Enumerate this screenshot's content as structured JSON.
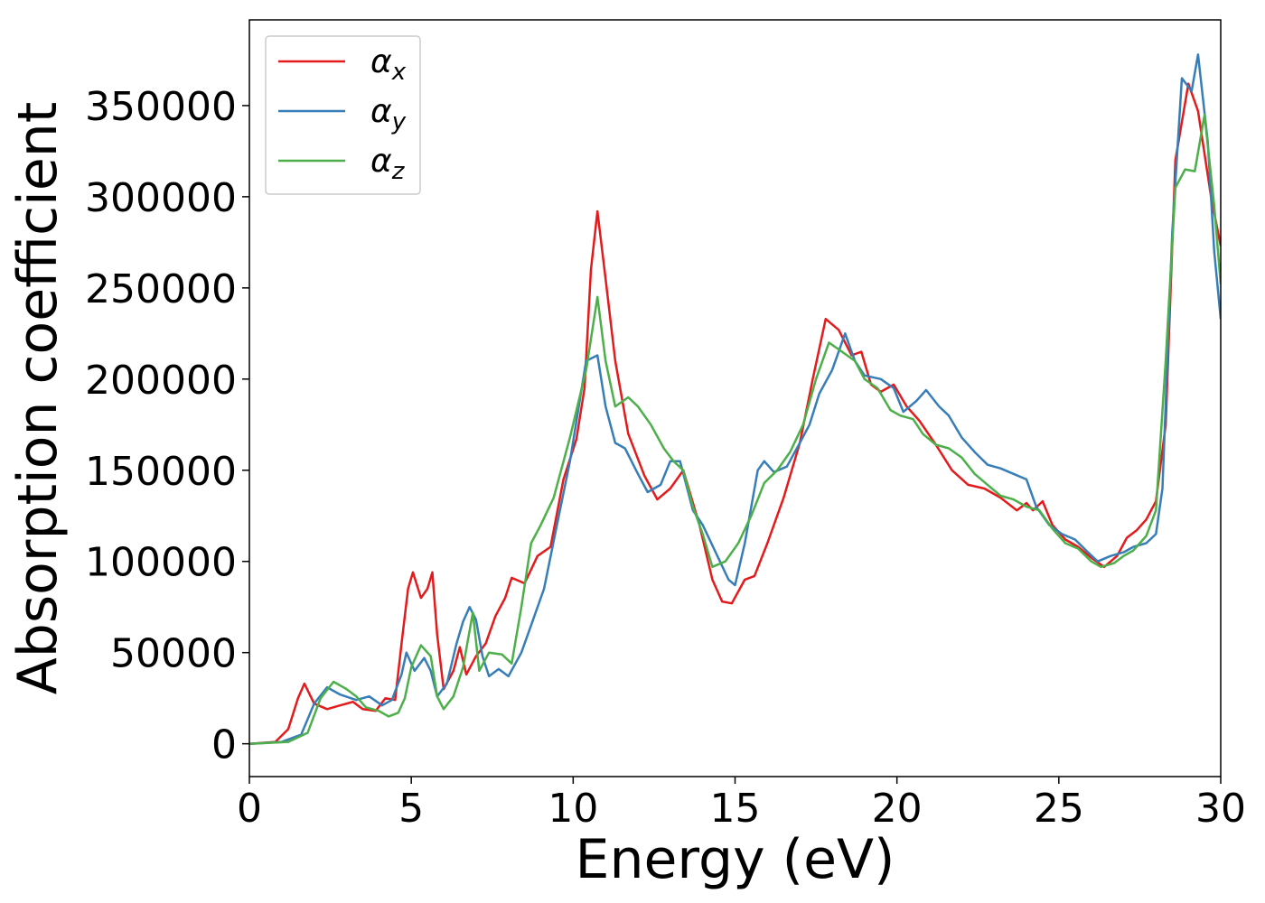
{
  "chart_data": {
    "type": "line",
    "xlabel": "Energy (eV)",
    "ylabel": "Absorption coefficient",
    "xlim": [
      0,
      30
    ],
    "ylim": [
      -18000,
      397000
    ],
    "xticks": [
      "0",
      "5",
      "10",
      "15",
      "20",
      "25",
      "30"
    ],
    "yticks": [
      "0",
      "50000",
      "100000",
      "150000",
      "200000",
      "250000",
      "300000",
      "350000"
    ],
    "grid": false,
    "legend_position": "top-left",
    "series": [
      {
        "name": "α_x",
        "legend_base": "α",
        "legend_sub": "x",
        "color": "#e41a1c",
        "points": [
          [
            0,
            0
          ],
          [
            0.8,
            1000
          ],
          [
            1.2,
            8000
          ],
          [
            1.5,
            25000
          ],
          [
            1.7,
            33000
          ],
          [
            2.0,
            22000
          ],
          [
            2.4,
            19000
          ],
          [
            2.8,
            21000
          ],
          [
            3.2,
            23000
          ],
          [
            3.5,
            19000
          ],
          [
            3.9,
            18000
          ],
          [
            4.2,
            25000
          ],
          [
            4.5,
            24000
          ],
          [
            4.7,
            55000
          ],
          [
            4.9,
            85000
          ],
          [
            5.05,
            94000
          ],
          [
            5.3,
            80000
          ],
          [
            5.5,
            85000
          ],
          [
            5.65,
            94000
          ],
          [
            5.8,
            60000
          ],
          [
            6.0,
            30000
          ],
          [
            6.3,
            40000
          ],
          [
            6.5,
            53000
          ],
          [
            6.7,
            38000
          ],
          [
            7.0,
            48000
          ],
          [
            7.3,
            55000
          ],
          [
            7.6,
            70000
          ],
          [
            7.9,
            80000
          ],
          [
            8.1,
            91000
          ],
          [
            8.5,
            88000
          ],
          [
            8.9,
            103000
          ],
          [
            9.3,
            108000
          ],
          [
            9.7,
            145000
          ],
          [
            10.1,
            167000
          ],
          [
            10.35,
            195000
          ],
          [
            10.55,
            260000
          ],
          [
            10.75,
            292000
          ],
          [
            11.0,
            255000
          ],
          [
            11.3,
            210000
          ],
          [
            11.7,
            170000
          ],
          [
            12.2,
            147000
          ],
          [
            12.6,
            134000
          ],
          [
            13.0,
            140000
          ],
          [
            13.4,
            150000
          ],
          [
            13.9,
            120000
          ],
          [
            14.3,
            90000
          ],
          [
            14.6,
            78000
          ],
          [
            14.9,
            77000
          ],
          [
            15.3,
            90000
          ],
          [
            15.6,
            92000
          ],
          [
            16.0,
            110000
          ],
          [
            16.5,
            135000
          ],
          [
            17.0,
            165000
          ],
          [
            17.4,
            200000
          ],
          [
            17.8,
            233000
          ],
          [
            18.2,
            227000
          ],
          [
            18.6,
            213000
          ],
          [
            18.9,
            215000
          ],
          [
            19.2,
            197000
          ],
          [
            19.5,
            193000
          ],
          [
            19.9,
            197000
          ],
          [
            20.3,
            185000
          ],
          [
            20.7,
            177000
          ],
          [
            21.2,
            164000
          ],
          [
            21.7,
            150000
          ],
          [
            22.2,
            142000
          ],
          [
            22.7,
            140000
          ],
          [
            23.2,
            135000
          ],
          [
            23.7,
            128000
          ],
          [
            24.0,
            132000
          ],
          [
            24.2,
            128000
          ],
          [
            24.5,
            133000
          ],
          [
            24.8,
            120000
          ],
          [
            25.2,
            112000
          ],
          [
            25.6,
            108000
          ],
          [
            26.0,
            102000
          ],
          [
            26.4,
            97000
          ],
          [
            26.8,
            103000
          ],
          [
            27.1,
            113000
          ],
          [
            27.4,
            117000
          ],
          [
            27.7,
            123000
          ],
          [
            28.0,
            133000
          ],
          [
            28.3,
            175000
          ],
          [
            28.6,
            320000
          ],
          [
            29.0,
            362000
          ],
          [
            29.3,
            347000
          ],
          [
            29.7,
            300000
          ],
          [
            30.0,
            273000
          ]
        ]
      },
      {
        "name": "α_y",
        "legend_base": "α",
        "legend_sub": "y",
        "color": "#377eb8",
        "points": [
          [
            0,
            0
          ],
          [
            1.0,
            1000
          ],
          [
            1.6,
            5000
          ],
          [
            2.0,
            22000
          ],
          [
            2.4,
            31000
          ],
          [
            2.8,
            27000
          ],
          [
            3.3,
            24000
          ],
          [
            3.7,
            26000
          ],
          [
            4.1,
            21000
          ],
          [
            4.4,
            24000
          ],
          [
            4.7,
            38000
          ],
          [
            4.85,
            50000
          ],
          [
            5.1,
            40000
          ],
          [
            5.4,
            47000
          ],
          [
            5.6,
            40000
          ],
          [
            5.8,
            26000
          ],
          [
            6.1,
            33000
          ],
          [
            6.4,
            55000
          ],
          [
            6.6,
            67000
          ],
          [
            6.8,
            75000
          ],
          [
            7.0,
            68000
          ],
          [
            7.2,
            48000
          ],
          [
            7.4,
            37000
          ],
          [
            7.7,
            41000
          ],
          [
            8.0,
            37000
          ],
          [
            8.4,
            50000
          ],
          [
            8.7,
            65000
          ],
          [
            9.1,
            85000
          ],
          [
            9.5,
            120000
          ],
          [
            9.9,
            155000
          ],
          [
            10.4,
            210000
          ],
          [
            10.75,
            213000
          ],
          [
            11.0,
            185000
          ],
          [
            11.3,
            165000
          ],
          [
            11.6,
            162000
          ],
          [
            12.0,
            148000
          ],
          [
            12.3,
            138000
          ],
          [
            12.7,
            142000
          ],
          [
            13.0,
            155000
          ],
          [
            13.3,
            155000
          ],
          [
            13.7,
            128000
          ],
          [
            14.0,
            120000
          ],
          [
            14.4,
            105000
          ],
          [
            14.8,
            90000
          ],
          [
            15.0,
            87000
          ],
          [
            15.3,
            110000
          ],
          [
            15.7,
            150000
          ],
          [
            15.9,
            155000
          ],
          [
            16.2,
            149000
          ],
          [
            16.6,
            152000
          ],
          [
            17.0,
            165000
          ],
          [
            17.3,
            175000
          ],
          [
            17.6,
            192000
          ],
          [
            18.0,
            205000
          ],
          [
            18.4,
            225000
          ],
          [
            18.7,
            210000
          ],
          [
            19.0,
            202000
          ],
          [
            19.5,
            200000
          ],
          [
            19.9,
            195000
          ],
          [
            20.2,
            182000
          ],
          [
            20.6,
            188000
          ],
          [
            20.9,
            194000
          ],
          [
            21.3,
            185000
          ],
          [
            21.6,
            180000
          ],
          [
            22.0,
            168000
          ],
          [
            22.4,
            160000
          ],
          [
            22.8,
            153000
          ],
          [
            23.2,
            151000
          ],
          [
            23.6,
            148000
          ],
          [
            24.0,
            145000
          ],
          [
            24.3,
            130000
          ],
          [
            24.7,
            120000
          ],
          [
            25.1,
            115000
          ],
          [
            25.5,
            112000
          ],
          [
            25.9,
            105000
          ],
          [
            26.2,
            100000
          ],
          [
            26.6,
            103000
          ],
          [
            27.0,
            105000
          ],
          [
            27.3,
            108000
          ],
          [
            27.7,
            110000
          ],
          [
            28.0,
            115000
          ],
          [
            28.2,
            140000
          ],
          [
            28.5,
            280000
          ],
          [
            28.8,
            365000
          ],
          [
            29.1,
            358000
          ],
          [
            29.3,
            378000
          ],
          [
            29.6,
            330000
          ],
          [
            29.8,
            270000
          ],
          [
            30.0,
            233000
          ]
        ]
      },
      {
        "name": "α_z",
        "legend_base": "α",
        "legend_sub": "z",
        "color": "#4daf4a",
        "points": [
          [
            0,
            0
          ],
          [
            1.2,
            1000
          ],
          [
            1.8,
            6000
          ],
          [
            2.2,
            25000
          ],
          [
            2.6,
            34000
          ],
          [
            3.0,
            30000
          ],
          [
            3.3,
            26000
          ],
          [
            3.6,
            20000
          ],
          [
            4.0,
            18000
          ],
          [
            4.3,
            15000
          ],
          [
            4.6,
            17000
          ],
          [
            4.8,
            25000
          ],
          [
            5.0,
            42000
          ],
          [
            5.3,
            54000
          ],
          [
            5.6,
            48000
          ],
          [
            5.8,
            26000
          ],
          [
            6.0,
            19000
          ],
          [
            6.3,
            26000
          ],
          [
            6.6,
            42000
          ],
          [
            6.9,
            72000
          ],
          [
            7.1,
            40000
          ],
          [
            7.4,
            50000
          ],
          [
            7.8,
            49000
          ],
          [
            8.1,
            44000
          ],
          [
            8.4,
            75000
          ],
          [
            8.7,
            110000
          ],
          [
            9.0,
            120000
          ],
          [
            9.4,
            135000
          ],
          [
            9.9,
            168000
          ],
          [
            10.4,
            205000
          ],
          [
            10.75,
            245000
          ],
          [
            11.0,
            210000
          ],
          [
            11.3,
            185000
          ],
          [
            11.7,
            190000
          ],
          [
            12.0,
            185000
          ],
          [
            12.4,
            175000
          ],
          [
            12.8,
            162000
          ],
          [
            13.1,
            155000
          ],
          [
            13.4,
            150000
          ],
          [
            13.7,
            130000
          ],
          [
            14.0,
            115000
          ],
          [
            14.3,
            97000
          ],
          [
            14.7,
            100000
          ],
          [
            15.1,
            110000
          ],
          [
            15.5,
            125000
          ],
          [
            15.9,
            143000
          ],
          [
            16.3,
            150000
          ],
          [
            16.7,
            160000
          ],
          [
            17.1,
            175000
          ],
          [
            17.5,
            200000
          ],
          [
            17.9,
            220000
          ],
          [
            18.3,
            215000
          ],
          [
            18.7,
            210000
          ],
          [
            19.0,
            200000
          ],
          [
            19.4,
            195000
          ],
          [
            19.8,
            183000
          ],
          [
            20.1,
            180000
          ],
          [
            20.5,
            178000
          ],
          [
            20.8,
            170000
          ],
          [
            21.2,
            164000
          ],
          [
            21.6,
            162000
          ],
          [
            22.0,
            157000
          ],
          [
            22.4,
            148000
          ],
          [
            22.8,
            142000
          ],
          [
            23.2,
            136000
          ],
          [
            23.6,
            134000
          ],
          [
            24.0,
            130000
          ],
          [
            24.4,
            128000
          ],
          [
            24.8,
            118000
          ],
          [
            25.2,
            110000
          ],
          [
            25.6,
            107000
          ],
          [
            26.0,
            100000
          ],
          [
            26.3,
            97000
          ],
          [
            26.7,
            99000
          ],
          [
            27.0,
            103000
          ],
          [
            27.3,
            106000
          ],
          [
            27.7,
            114000
          ],
          [
            28.0,
            128000
          ],
          [
            28.3,
            210000
          ],
          [
            28.6,
            305000
          ],
          [
            28.9,
            315000
          ],
          [
            29.2,
            314000
          ],
          [
            29.5,
            345000
          ],
          [
            29.8,
            295000
          ],
          [
            30.0,
            252000
          ]
        ]
      }
    ]
  }
}
